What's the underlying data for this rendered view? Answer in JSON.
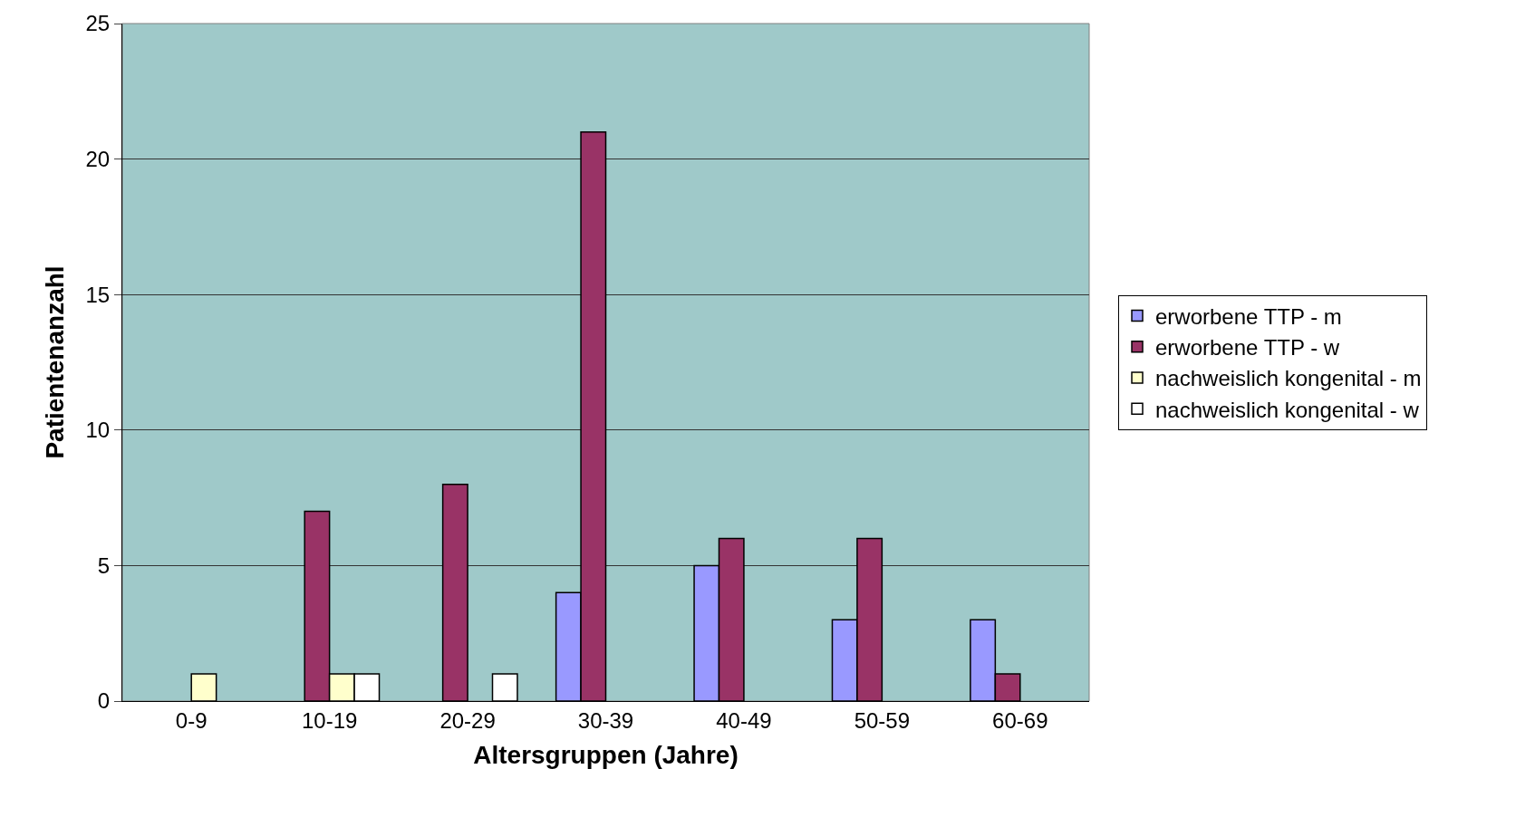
{
  "chart_data": {
    "type": "bar",
    "xlabel": "Altersgruppen (Jahre)",
    "ylabel": "Patientenanzahl",
    "categories": [
      "0-9",
      "10-19",
      "20-29",
      "30-39",
      "40-49",
      "50-59",
      "60-69"
    ],
    "series": [
      {
        "name": "erworbene TTP - m",
        "color": "#9999ff",
        "values": [
          null,
          null,
          null,
          4,
          5,
          3,
          3
        ]
      },
      {
        "name": "erworbene TTP - w",
        "color": "#993366",
        "values": [
          null,
          7,
          8,
          21,
          6,
          6,
          1
        ]
      },
      {
        "name": "nachweislich kongenital - m",
        "color": "#ffffcc",
        "values": [
          1,
          1,
          null,
          null,
          null,
          null,
          null
        ]
      },
      {
        "name": "nachweislich kongenital - w",
        "color": "#ffffff",
        "values": [
          null,
          1,
          1,
          null,
          null,
          null,
          null
        ]
      }
    ],
    "ylim": [
      0,
      25
    ],
    "yticks": [
      0,
      5,
      10,
      15,
      20,
      25
    ],
    "grid": "y",
    "legend": "right"
  }
}
